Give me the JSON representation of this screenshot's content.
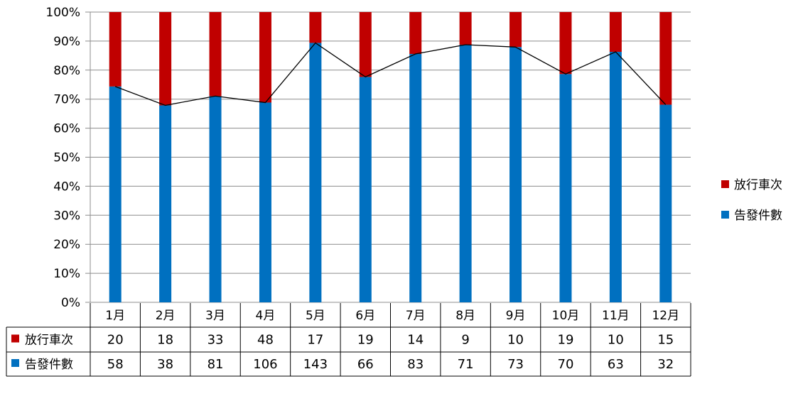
{
  "chart_data": {
    "type": "bar",
    "stacked": true,
    "normalized": true,
    "categories": [
      "1月",
      "2月",
      "3月",
      "4月",
      "5月",
      "6月",
      "7月",
      "8月",
      "9月",
      "10月",
      "11月",
      "12月"
    ],
    "series": [
      {
        "name": "告發件數",
        "color": "#0070C0",
        "values": [
          58,
          38,
          81,
          106,
          143,
          66,
          83,
          71,
          73,
          70,
          63,
          32
        ]
      },
      {
        "name": "放行車次",
        "color": "#C00000",
        "values": [
          20,
          18,
          33,
          48,
          17,
          19,
          14,
          9,
          10,
          19,
          10,
          15
        ]
      }
    ],
    "line_series": "告發件數",
    "ylim": [
      0,
      100
    ],
    "yticks": [
      "0%",
      "10%",
      "20%",
      "30%",
      "40%",
      "50%",
      "60%",
      "70%",
      "80%",
      "90%",
      "100%"
    ],
    "grid": true,
    "legend_position": "right",
    "legend": [
      "放行車次",
      "告發件數"
    ],
    "data_table": {
      "rows": [
        {
          "label": "放行車次",
          "color": "#C00000",
          "values": [
            "20",
            "18",
            "33",
            "48",
            "17",
            "19",
            "14",
            "9",
            "10",
            "19",
            "10",
            "15"
          ]
        },
        {
          "label": "告發件數",
          "color": "#0070C0",
          "values": [
            "58",
            "38",
            "81",
            "106",
            "143",
            "66",
            "83",
            "71",
            "73",
            "70",
            "63",
            "32"
          ]
        }
      ]
    }
  }
}
